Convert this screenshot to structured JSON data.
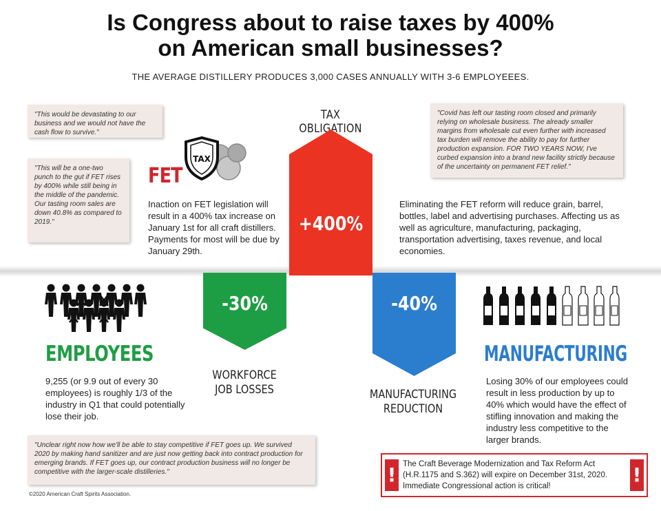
{
  "header": {
    "title_line1": "Is Congress about to raise taxes by 400%",
    "title_line2": "on American small businesses?",
    "subtitle": "THE AVERAGE DISTILLERY PRODUCES 3,000 CASES ANNUALLY WITH 3-6 EMPLOYEEES."
  },
  "quotes": {
    "q1": "\"This would be devastating to our business and we would not have the cash flow to survive.\"",
    "q2": "\"This will be a one-two punch to the gut if FET rises by 400% while still being in the middle of the pandemic. Our tasting room sales are down 40.8% as compared to 2019.\"",
    "q3": "\"Covid has left our tasting room closed and primarily relying on wholesale business. The already smaller margins from wholesale cut even further with increased tax burden will remove the ability to pay for further production expansion. FOR TWO YEARS NOW, I've curbed expansion into a brand new facility strictly because of the uncertainty on permanent FET relief.\"",
    "q4": "\"Unclear right now how we'll be able to stay competitive if FET goes up. We survived 2020 by making hand sanitizer and are just now getting back into contract production for emerging brands. If FET goes up, our contract production business will no longer be competitive with the larger-scale distilleries.\""
  },
  "fet": {
    "icon_text": "TAX",
    "title": "FET",
    "text": "Inaction on FET legislation will result in a 400% tax increase on January 1st for all craft distillers. Payments for most will be due by January 29th."
  },
  "tax_obligation": {
    "label": "TAX OBLIGATION",
    "value": "+400%",
    "color": "#ea3323"
  },
  "right_text": "Eliminating the FET reform will reduce grain, barrel, bottles, label and advertising  purchases. Affecting us as well as agriculture, manufacturing, packaging, transportation advertising, taxes revenue, and local economies.",
  "workforce": {
    "value": "-30%",
    "label_line1": "WORKFORCE",
    "label_line2": "JOB LOSSES",
    "color": "#1e9e44"
  },
  "manufacturing_reduction": {
    "value": "-40%",
    "label_line1": "MANUFACTURING",
    "label_line2": "REDUCTION",
    "color": "#2b7dce"
  },
  "employees": {
    "title": "EMPLOYEES",
    "text": "9,255 (or 9.9 out of every 30 employees) is roughly 1/3 of the industry in Q1 that could potentially lose their job."
  },
  "manufacturing": {
    "title": "MANUFACTURING",
    "text": "Losing 30% of our employees could result in less production by up to 40% which would have the effect of stifling innovation and making the industry less competitive to the larger brands."
  },
  "alert": {
    "bang": "!",
    "text": "The Craft Beverage Modernization and Tax Reform Act (H.R.1175 and S.362) will expire on December 31st, 2020. Immediate Congressional action is critical!"
  },
  "footer": {
    "copyright": "©2020 American Craft Spirits Association."
  }
}
